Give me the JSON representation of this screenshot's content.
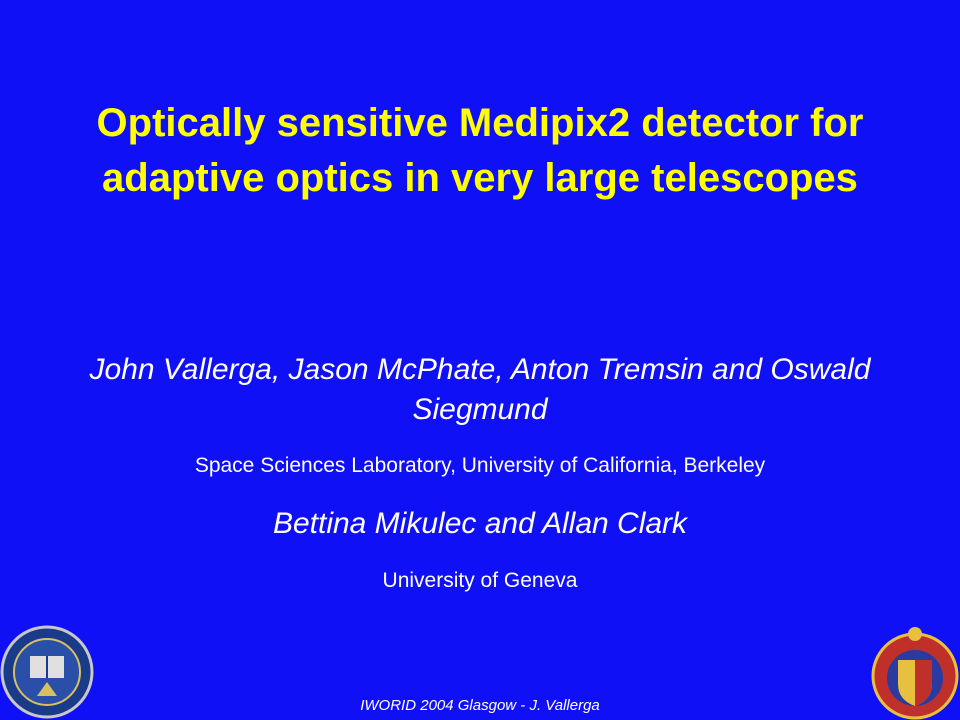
{
  "slide": {
    "title": "Optically sensitive Medipix2 detector for adaptive optics in very large telescopes",
    "authors": [
      {
        "names": "John Vallerga, Jason McPhate, Anton Tremsin and Oswald Siegmund",
        "affiliation": "Space Sciences Laboratory, University of California, Berkeley"
      },
      {
        "names": "Bettina Mikulec and Allan Clark",
        "affiliation": "University of Geneva"
      }
    ],
    "footer": "IWORID 2004 Glasgow - J. Vallerga"
  }
}
